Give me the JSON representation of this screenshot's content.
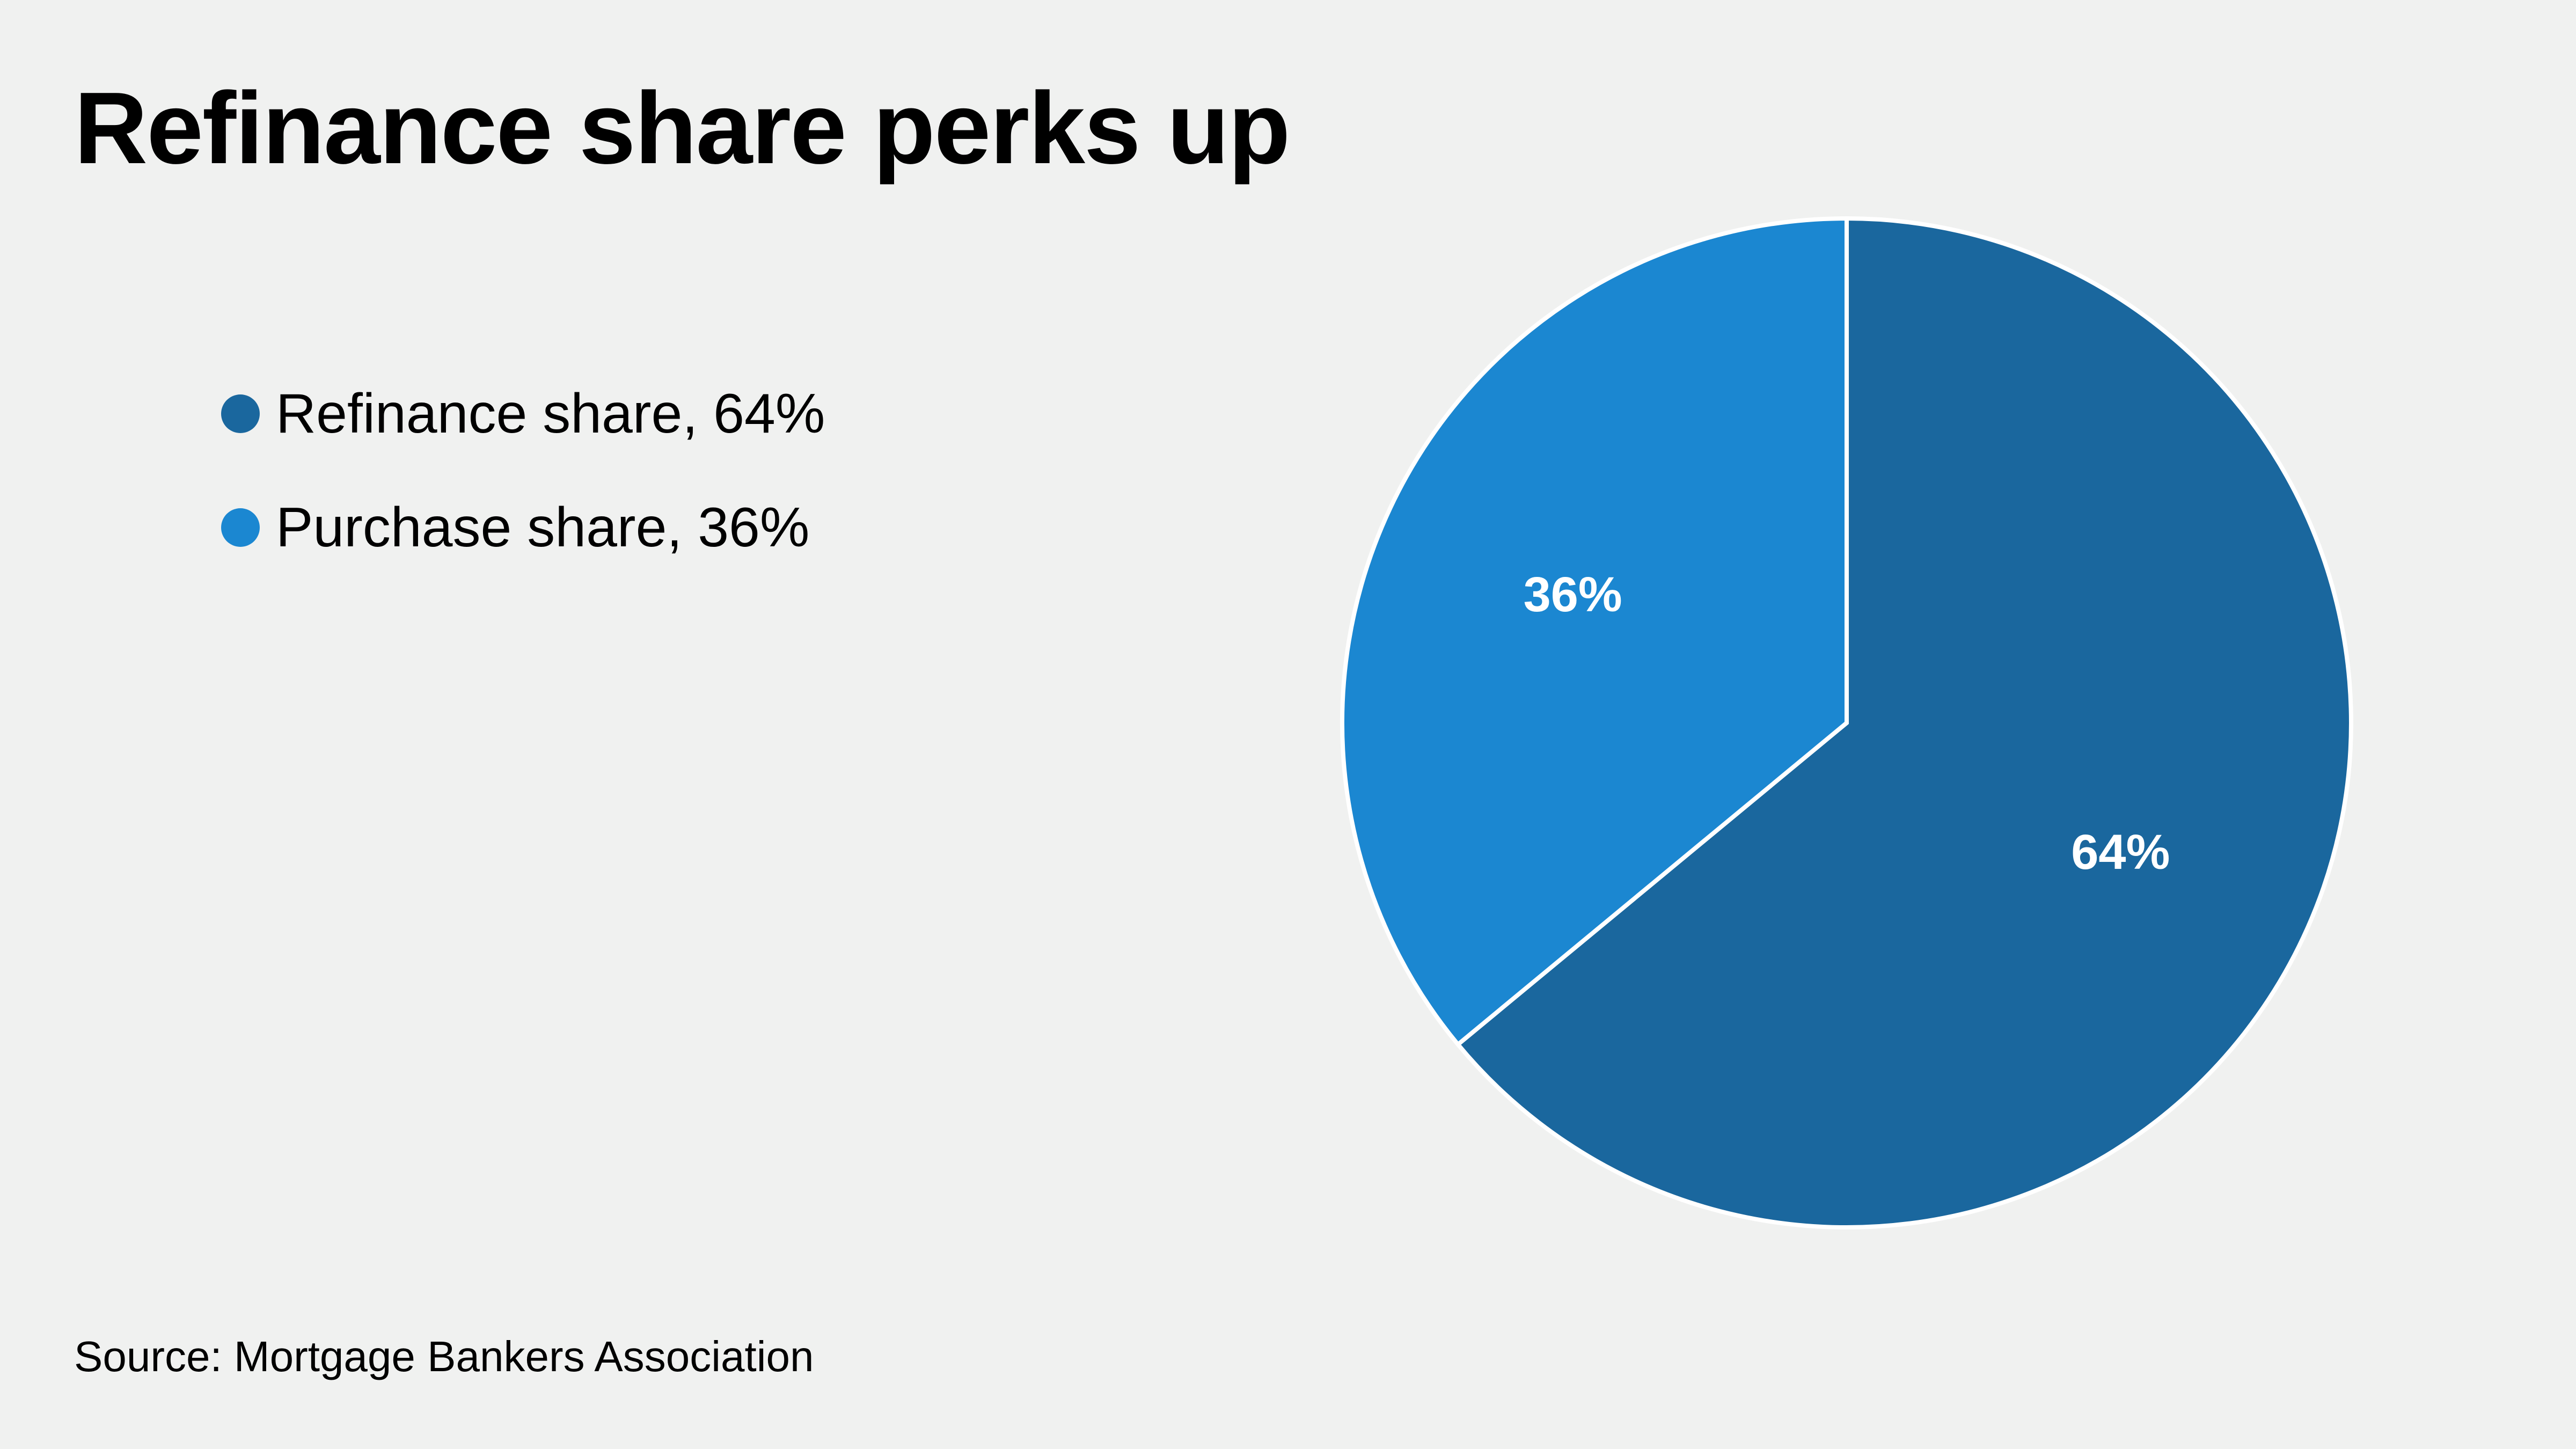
{
  "title": "Refinance share perks up",
  "source": "Source: Mortgage Bankers Association",
  "chart_data": {
    "type": "pie",
    "title": "Refinance share perks up",
    "legend_position": "left",
    "slices": [
      {
        "name": "Refinance share",
        "value": 64,
        "label": "64%",
        "legend": "Refinance share, 64%",
        "color": "#1a679e"
      },
      {
        "name": "Purchase share",
        "value": 36,
        "label": "36%",
        "legend": "Purchase share, 36%",
        "color": "#1b87d1"
      }
    ],
    "start_angle": "top",
    "direction": "clockwise"
  }
}
